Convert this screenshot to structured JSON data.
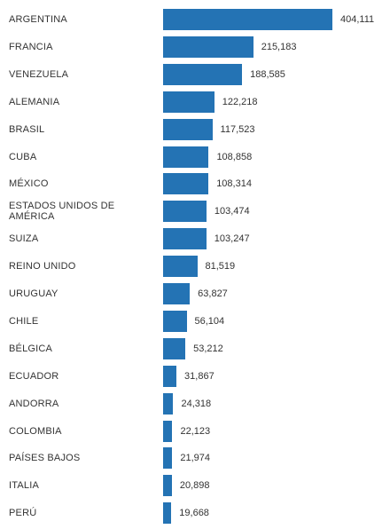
{
  "chart_data": {
    "type": "bar",
    "orientation": "horizontal",
    "bar_color": "#2473B4",
    "categories": [
      "ARGENTINA",
      "FRANCIA",
      "VENEZUELA",
      "ALEMANIA",
      "BRASIL",
      "CUBA",
      "MÉXICO",
      "ESTADOS UNIDOS DE AMÉRICA",
      "SUIZA",
      "REINO UNIDO",
      "URUGUAY",
      "CHILE",
      "BÉLGICA",
      "ECUADOR",
      "ANDORRA",
      "COLOMBIA",
      "PAÍSES BAJOS",
      "ITALIA",
      "PERÚ"
    ],
    "values": [
      404111,
      215183,
      188585,
      122218,
      117523,
      108858,
      108314,
      103474,
      103247,
      81519,
      63827,
      56104,
      53212,
      31867,
      24318,
      22123,
      21974,
      20898,
      19668
    ],
    "value_labels": [
      "404,111",
      "215,183",
      "188,585",
      "122,218",
      "117,523",
      "108,858",
      "108,314",
      "103,474",
      "103,247",
      "81,519",
      "63,827",
      "56,104",
      "53,212",
      "31,867",
      "24,318",
      "22,123",
      "21,974",
      "20,898",
      "19,668"
    ],
    "title": "",
    "xlabel": "",
    "ylabel": "",
    "grid": false,
    "legend": "none"
  }
}
